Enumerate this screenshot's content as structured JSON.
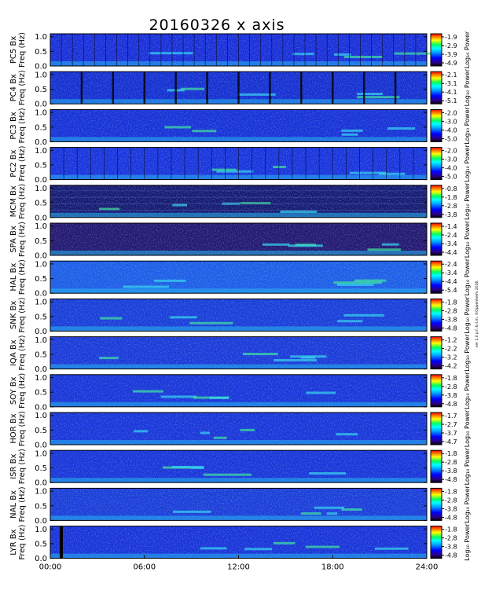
{
  "title": "20160326 x axis",
  "side_note": "ver 1.0 p.f. & t.m. ©Oppenheim 2016",
  "chart_data": {
    "type": "heatmap",
    "x_unit": "hours UT",
    "xlim": [
      0,
      24
    ],
    "x_ticks": [
      {
        "value": 0,
        "label": "00:00"
      },
      {
        "value": 6,
        "label": "06:00"
      },
      {
        "value": 12,
        "label": "12:00"
      },
      {
        "value": 18,
        "label": "18:00"
      },
      {
        "value": 24,
        "label": "24:00"
      }
    ],
    "ylim": [
      0,
      1.1
    ],
    "y_ticks": [
      {
        "value": 0.0,
        "label": "0.0"
      },
      {
        "value": 0.5,
        "label": "0.5"
      },
      {
        "value": 1.0,
        "label": "1.0"
      }
    ],
    "colorbar_label": "Log₁₀ Power",
    "colormap": [
      "#000000",
      "#2a0080",
      "#0000ff",
      "#00a0ff",
      "#00ffff",
      "#00ff60",
      "#ffff00",
      "#ff8000",
      "#ff0000"
    ],
    "panels": [
      {
        "station": "PC5",
        "ylabel_line1": "PC5 Bx",
        "ylabel_line2": "Freq (Hz)",
        "colorbar_ticks": [
          "-1.9",
          "-2.9",
          "-3.9",
          "-4.9"
        ],
        "colorbar_label": "Log₁₀ Power"
      },
      {
        "station": "PC4",
        "ylabel_line1": "PC4 Bx",
        "ylabel_line2": "Freq (Hz)",
        "colorbar_ticks": [
          "-2.1",
          "-3.1",
          "-4.1",
          "-5.1"
        ],
        "colorbar_label": "Log₁₀ Power"
      },
      {
        "station": "PC3",
        "ylabel_line1": "PC3 Bx",
        "ylabel_line2": "Freq (Hz)",
        "colorbar_ticks": [
          "-2.0",
          "-3.0",
          "-4.0",
          "-5.0"
        ],
        "colorbar_label": "Log₁₀ Power"
      },
      {
        "station": "PC2",
        "ylabel_line1": "PC2 Bx",
        "ylabel_line2": "Freq (Hz)",
        "colorbar_ticks": [
          "-2.0",
          "-3.0",
          "-4.0",
          "-5.0"
        ],
        "colorbar_label": "Log₁₀ Power"
      },
      {
        "station": "MCM",
        "ylabel_line1": "MCM Bx",
        "ylabel_line2": "Freq (Hz)",
        "colorbar_ticks": [
          "-0.8",
          "-1.8",
          "-2.8",
          "-3.8"
        ],
        "colorbar_label": "Log₁₀ Power"
      },
      {
        "station": "SPA",
        "ylabel_line1": "SPA Bx",
        "ylabel_line2": "Freq (Hz)",
        "colorbar_ticks": [
          "-1.4",
          "-2.4",
          "-3.4",
          "-4.4"
        ],
        "colorbar_label": "Log₁₀ Power"
      },
      {
        "station": "HAL",
        "ylabel_line1": "HAL Bx",
        "ylabel_line2": "Freq (Hz)",
        "colorbar_ticks": [
          "-2.4",
          "-3.4",
          "-4.4",
          "-5.4"
        ],
        "colorbar_label": "Log₁₀ Power"
      },
      {
        "station": "SNK",
        "ylabel_line1": "SNK Bx",
        "ylabel_line2": "Freq (Hz)",
        "colorbar_ticks": [
          "-1.8",
          "-2.8",
          "-3.8",
          "-4.8"
        ],
        "colorbar_label": "Log₁₀ Power"
      },
      {
        "station": "IQA",
        "ylabel_line1": "IQA Bx",
        "ylabel_line2": "Freq (Hz)",
        "colorbar_ticks": [
          "-1.2",
          "-2.2",
          "-3.2",
          "-4.2"
        ],
        "colorbar_label": "Log₁₀ Power"
      },
      {
        "station": "SOY",
        "ylabel_line1": "SOY Bx",
        "ylabel_line2": "Freq (Hz)",
        "colorbar_ticks": [
          "-1.8",
          "-2.8",
          "-3.8",
          "-4.8"
        ],
        "colorbar_label": "Log₁₀ Power"
      },
      {
        "station": "HOR",
        "ylabel_line1": "HOR Bx",
        "ylabel_line2": "Freq (Hz)",
        "colorbar_ticks": [
          "-1.7",
          "-2.7",
          "-3.7",
          "-4.7"
        ],
        "colorbar_label": "Log₁₀ Power"
      },
      {
        "station": "ISR",
        "ylabel_line1": "ISR Bx",
        "ylabel_line2": "Freq (Hz)",
        "colorbar_ticks": [
          "-1.8",
          "-2.8",
          "-3.8",
          "-4.8"
        ],
        "colorbar_label": "Log₁₀ Power"
      },
      {
        "station": "NAL",
        "ylabel_line1": "NAL Bx",
        "ylabel_line2": "Freq (Hz)",
        "colorbar_ticks": [
          "-1.8",
          "-2.8",
          "-3.8",
          "-4.8"
        ],
        "colorbar_label": "Log₁₀ Power"
      },
      {
        "station": "LYR",
        "ylabel_line1": "LYR Bx",
        "ylabel_line2": "Freq (Hz)",
        "colorbar_ticks": [
          "-1.8",
          "-2.8",
          "-3.8",
          "-4.8"
        ],
        "colorbar_label": "Log₁₀ Power"
      }
    ]
  }
}
